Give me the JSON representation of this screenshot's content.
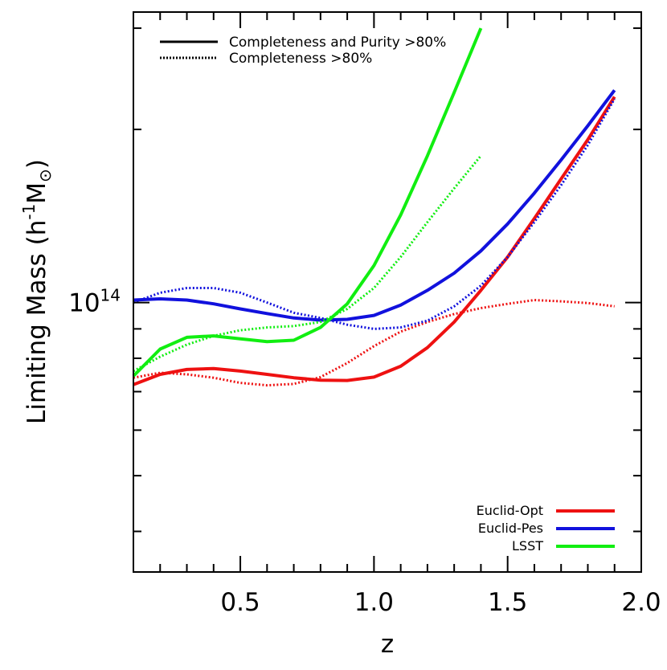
{
  "chart_data": {
    "type": "line",
    "title": "",
    "xlabel": "z",
    "ylabel_main": "Limiting Mass (h",
    "ylabel_exp": "-1",
    "ylabel_mid": "M",
    "ylabel_sub": "⊙",
    "ylabel_end": ")",
    "xlim": [
      0.1,
      2.0
    ],
    "ylim": [
      34000000000000.0,
      320000000000000.0
    ],
    "yscale": "log",
    "x_ticks": [
      {
        "value": 0.5,
        "label": "0.5"
      },
      {
        "value": 1.0,
        "label": "1.0"
      },
      {
        "value": 1.5,
        "label": "1.5"
      },
      {
        "value": 2.0,
        "label": "2.0"
      }
    ],
    "y_ticks": [
      {
        "value": 100000000000000.0,
        "base": "10",
        "exp": "14"
      }
    ],
    "style_legend": [
      {
        "label": "Completeness and Purity >80%",
        "style": "solid"
      },
      {
        "label": "Completeness >80%",
        "style": "dotted"
      }
    ],
    "series_legend": [
      {
        "name": "Euclid-Opt",
        "color": "#ee1111"
      },
      {
        "name": "Euclid-Pes",
        "color": "#1111dd"
      },
      {
        "name": "LSST",
        "color": "#11ee11"
      }
    ],
    "series": [
      {
        "name": "Euclid-Opt",
        "style": "solid",
        "color": "#ee1111",
        "x": [
          0.1,
          0.2,
          0.3,
          0.4,
          0.5,
          0.6,
          0.7,
          0.8,
          0.9,
          1.0,
          1.1,
          1.2,
          1.3,
          1.4,
          1.5,
          1.6,
          1.7,
          1.8,
          1.9
        ],
        "y": [
          72000000000000.0,
          75000000000000.0,
          76500000000000.0,
          76800000000000.0,
          76000000000000.0,
          75000000000000.0,
          74000000000000.0,
          73300000000000.0,
          73200000000000.0,
          74200000000000.0,
          77500000000000.0,
          83500000000000.0,
          92500000000000.0,
          105000000000000.0,
          120000000000000.0,
          140000000000000.0,
          164000000000000.0,
          192000000000000.0,
          228000000000000.0
        ]
      },
      {
        "name": "Euclid-Opt",
        "style": "dotted",
        "color": "#ee1111",
        "x": [
          0.1,
          0.2,
          0.3,
          0.4,
          0.5,
          0.6,
          0.7,
          0.8,
          0.9,
          1.0,
          1.1,
          1.2,
          1.3,
          1.4,
          1.5,
          1.6,
          1.7,
          1.8,
          1.9
        ],
        "y": [
          74000000000000.0,
          75500000000000.0,
          75000000000000.0,
          74000000000000.0,
          72500000000000.0,
          71800000000000.0,
          72200000000000.0,
          74200000000000.0,
          78500000000000.0,
          84000000000000.0,
          89000000000000.0,
          92500000000000.0,
          95500000000000.0,
          97800000000000.0,
          99500000000000.0,
          101000000000000.0,
          100500000000000.0,
          99800000000000.0,
          98500000000000.0
        ]
      },
      {
        "name": "Euclid-Pes",
        "style": "solid",
        "color": "#1111dd",
        "x": [
          0.1,
          0.2,
          0.3,
          0.4,
          0.5,
          0.6,
          0.7,
          0.8,
          0.9,
          1.0,
          1.1,
          1.2,
          1.3,
          1.4,
          1.5,
          1.6,
          1.7,
          1.8,
          1.9
        ],
        "y": [
          101000000000000.0,
          101500000000000.0,
          101000000000000.0,
          99500000000000.0,
          97500000000000.0,
          95700000000000.0,
          94000000000000.0,
          93200000000000.0,
          93500000000000.0,
          95000000000000.0,
          99000000000000.0,
          105000000000000.0,
          112500000000000.0,
          123000000000000.0,
          137000000000000.0,
          155000000000000.0,
          177000000000000.0,
          203000000000000.0,
          234000000000000.0
        ]
      },
      {
        "name": "Euclid-Pes",
        "style": "dotted",
        "color": "#1111dd",
        "x": [
          0.1,
          0.2,
          0.3,
          0.4,
          0.5,
          0.6,
          0.7,
          0.8,
          0.9,
          1.0,
          1.1,
          1.2,
          1.3,
          1.4,
          1.5,
          1.6,
          1.7,
          1.8,
          1.9
        ],
        "y": [
          100000000000000.0,
          104000000000000.0,
          106000000000000.0,
          106000000000000.0,
          104000000000000.0,
          100000000000000.0,
          96000000000000.0,
          94000000000000.0,
          91500000000000.0,
          90000000000000.0,
          90500000000000.0,
          93000000000000.0,
          98500000000000.0,
          107000000000000.0,
          120000000000000.0,
          138000000000000.0,
          160000000000000.0,
          188000000000000.0,
          226000000000000.0
        ]
      },
      {
        "name": "LSST",
        "style": "solid",
        "color": "#11ee11",
        "x": [
          0.1,
          0.2,
          0.3,
          0.4,
          0.5,
          0.6,
          0.7,
          0.8,
          0.9,
          1.0,
          1.1,
          1.2,
          1.3,
          1.4
        ],
        "y": [
          74500000000000.0,
          83000000000000.0,
          87000000000000.0,
          87500000000000.0,
          86500000000000.0,
          85500000000000.0,
          86000000000000.0,
          90500000000000.0,
          99500000000000.0,
          116000000000000.0,
          142000000000000.0,
          180000000000000.0,
          232000000000000.0,
          300000000000000.0
        ]
      },
      {
        "name": "LSST",
        "style": "dotted",
        "color": "#11ee11",
        "x": [
          0.1,
          0.2,
          0.3,
          0.4,
          0.5,
          0.6,
          0.7,
          0.8,
          0.9,
          1.0,
          1.1,
          1.2,
          1.3,
          1.4
        ],
        "y": [
          76000000000000.0,
          80500000000000.0,
          84500000000000.0,
          87500000000000.0,
          89500000000000.0,
          90500000000000.0,
          91000000000000.0,
          92500000000000.0,
          97500000000000.0,
          106000000000000.0,
          120000000000000.0,
          138000000000000.0,
          158000000000000.0,
          180000000000000.0
        ]
      }
    ]
  }
}
